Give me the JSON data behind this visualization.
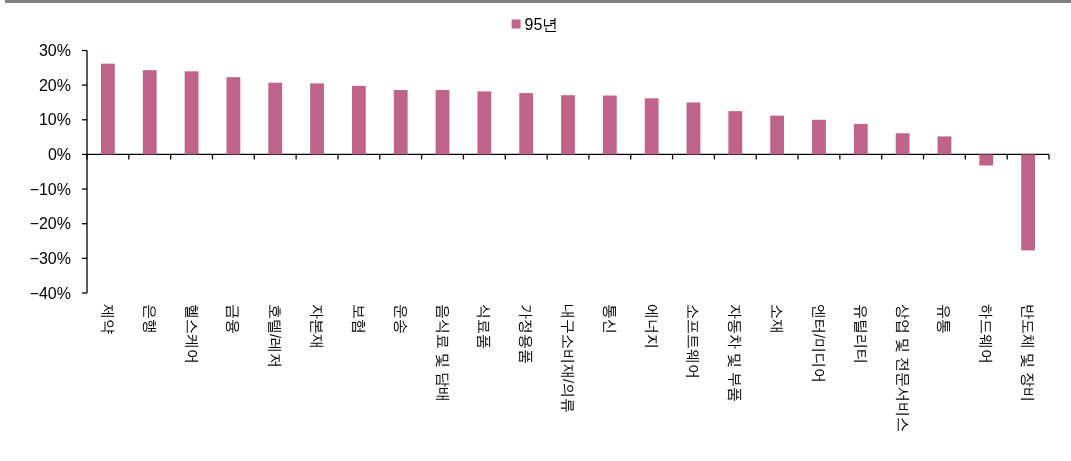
{
  "chart_data": {
    "type": "bar",
    "categories": [
      "제약",
      "은행",
      "헬스케어",
      "금융",
      "호텔/레저",
      "자본재",
      "보험",
      "운송",
      "음식료 및 담배",
      "식료품",
      "가정용품",
      "내구소비재/의류",
      "통신",
      "에너지",
      "소프트웨어",
      "자동차 및 부품",
      "소재",
      "엔터/미디어",
      "유틸리티",
      "상업 및 전문서비스",
      "유통",
      "하드웨어",
      "반도체 및 장비"
    ],
    "series": [
      {
        "name": "95년",
        "color": "#c0638a",
        "values": [
          26.2,
          24.3,
          24.0,
          22.3,
          20.7,
          20.5,
          19.8,
          18.6,
          18.6,
          18.2,
          17.7,
          17.1,
          17.0,
          16.2,
          15.0,
          12.5,
          11.2,
          10.0,
          8.8,
          6.1,
          5.2,
          -3.2,
          -27.7
        ]
      }
    ],
    "ylim": [
      -40,
      30
    ],
    "yticks": [
      {
        "value": 30,
        "label": "30%"
      },
      {
        "value": 20,
        "label": "20%"
      },
      {
        "value": 10,
        "label": "10%"
      },
      {
        "value": 0,
        "label": "0%"
      },
      {
        "value": -10,
        "label": "−10%"
      },
      {
        "value": -20,
        "label": "−20%"
      },
      {
        "value": -30,
        "label": "−30%"
      },
      {
        "value": -40,
        "label": "−40%"
      }
    ],
    "legend": "top"
  }
}
